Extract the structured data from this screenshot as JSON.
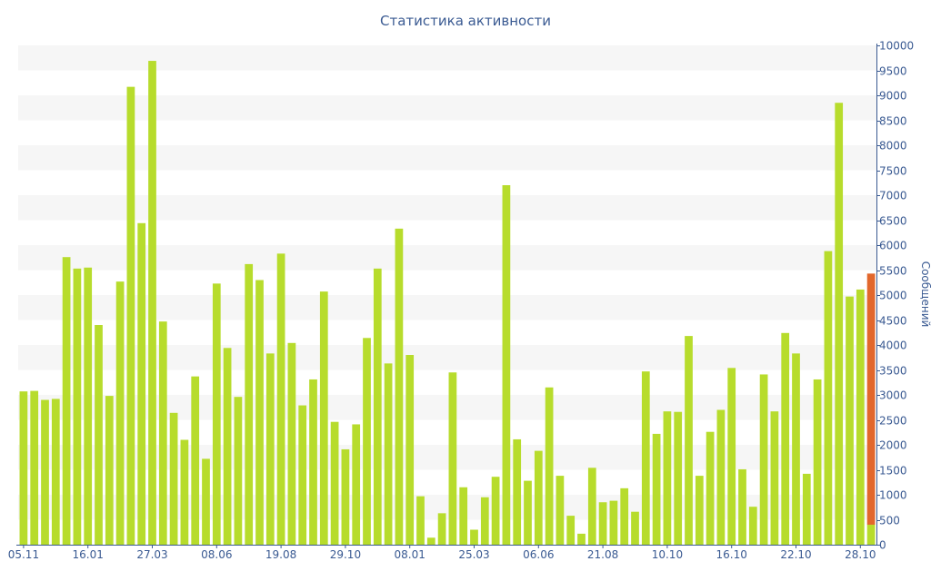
{
  "chart_data": {
    "type": "bar",
    "title": "Статистика активности",
    "ylabel": "Сообщений",
    "ylim": [
      0,
      10000
    ],
    "y_ticks": [
      0,
      500,
      1000,
      1500,
      2000,
      2500,
      3000,
      3500,
      4000,
      4500,
      5000,
      5500,
      6000,
      6500,
      7000,
      7500,
      8000,
      8500,
      9000,
      9500,
      10000
    ],
    "x_tick_labels": [
      {
        "index": 0,
        "label": "05.11"
      },
      {
        "index": 6,
        "label": "16.01"
      },
      {
        "index": 12,
        "label": "27.03"
      },
      {
        "index": 18,
        "label": "08.06"
      },
      {
        "index": 24,
        "label": "19.08"
      },
      {
        "index": 30,
        "label": "29.10"
      },
      {
        "index": 36,
        "label": "08.01"
      },
      {
        "index": 42,
        "label": "25.03"
      },
      {
        "index": 48,
        "label": "06.06"
      },
      {
        "index": 54,
        "label": "21.08"
      },
      {
        "index": 60,
        "label": "10.10"
      },
      {
        "index": 66,
        "label": "16.10"
      },
      {
        "index": 72,
        "label": "22.10"
      },
      {
        "index": 78,
        "label": "28.10"
      }
    ],
    "grid": "horizontal alternating bands",
    "y_axis_position": "right",
    "colors": {
      "bar": "#b7dc2c",
      "highlight": "#e2672c",
      "text": "#3a5a92",
      "band": "#f6f6f6",
      "axis": "#3a5a92"
    },
    "values": [
      3070,
      3080,
      2900,
      2920,
      5760,
      5530,
      5550,
      4400,
      2980,
      5270,
      9170,
      6440,
      9690,
      4470,
      2640,
      2100,
      3370,
      1720,
      5230,
      3940,
      2960,
      5620,
      5300,
      3830,
      5830,
      4040,
      2790,
      3310,
      5070,
      2460,
      1910,
      2410,
      4140,
      5530,
      3630,
      6330,
      3800,
      970,
      140,
      630,
      3450,
      1150,
      300,
      950,
      1360,
      7200,
      2110,
      1280,
      1880,
      3150,
      1380,
      580,
      220,
      1540,
      850,
      880,
      1130,
      660,
      3470,
      2220,
      2670,
      2660,
      4180,
      1380,
      2260,
      2700,
      3540,
      1510,
      760,
      3410,
      2670,
      4240,
      3830,
      1420,
      3310,
      5880,
      8850,
      4970,
      5110,
      400
    ],
    "last_bar_stack": {
      "base": 400,
      "highlight": 5030
    }
  }
}
